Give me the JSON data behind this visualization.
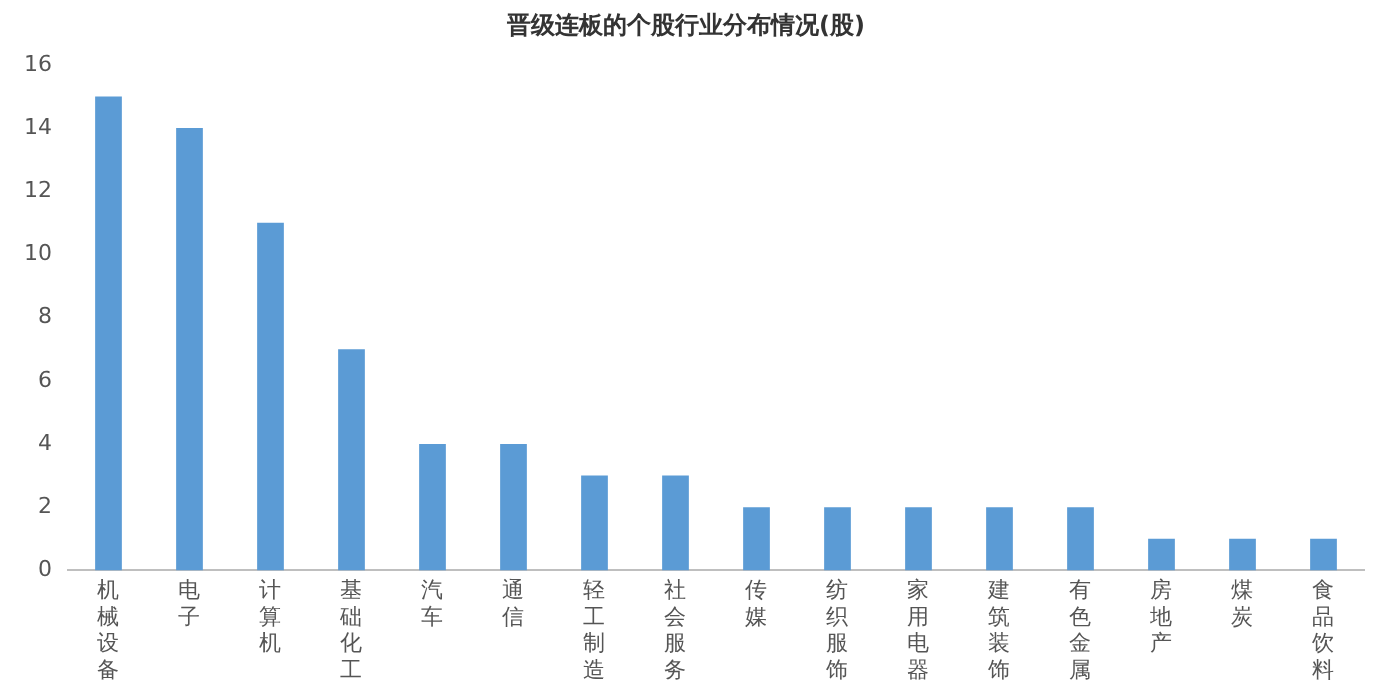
{
  "chart_data": {
    "type": "bar",
    "title": "晋级连板的个股行业分布情况(股)",
    "categories": [
      "机械设备",
      "电子",
      "计算机",
      "基础化工",
      "汽车",
      "通信",
      "轻工制造",
      "社会服务",
      "传媒",
      "纺织服饰",
      "家用电器",
      "建筑装饰",
      "有色金属",
      "房地产",
      "煤炭",
      "食品饮料"
    ],
    "values": [
      15,
      14,
      11,
      7,
      4,
      4,
      3,
      3,
      2,
      2,
      2,
      2,
      2,
      1,
      1,
      1
    ],
    "color": "#5b9bd5",
    "ylim": [
      0,
      16
    ],
    "yticks": [
      0,
      2,
      4,
      6,
      8,
      10,
      12,
      14,
      16
    ],
    "grid": false,
    "legend": false
  }
}
